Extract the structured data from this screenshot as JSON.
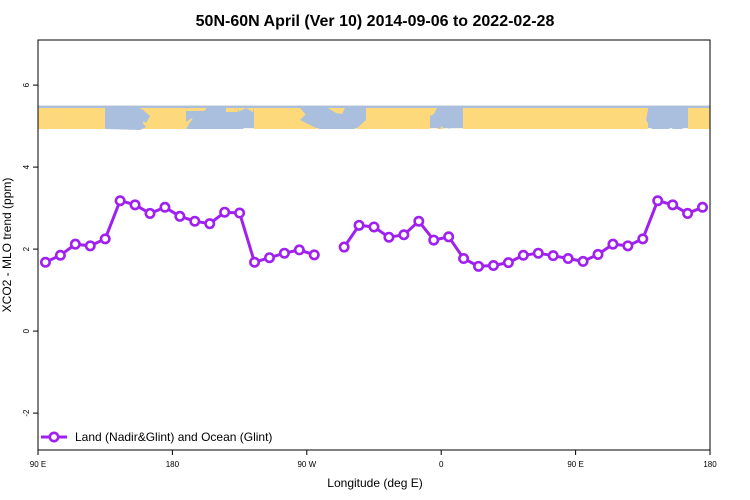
{
  "chart_data": {
    "type": "line",
    "title": "50N-60N April (Ver 10)   2014-09-06 to 2022-02-28",
    "xlabel": "Longitude (deg E)",
    "ylabel": "XCO2 - MLO trend (ppm)",
    "xlim": [
      90,
      540
    ],
    "ylim": [
      -2.9,
      7.1
    ],
    "x_ticks": [
      {
        "value": 90,
        "label": "90 E"
      },
      {
        "value": 180,
        "label": "180"
      },
      {
        "value": 270,
        "label": "90 W"
      },
      {
        "value": 360,
        "label": "0"
      },
      {
        "value": 450,
        "label": "90 E"
      },
      {
        "value": 540,
        "label": "180"
      }
    ],
    "y_ticks": [
      {
        "value": -2,
        "label": "-2"
      },
      {
        "value": 0,
        "label": "0"
      },
      {
        "value": 2,
        "label": "2"
      },
      {
        "value": 4,
        "label": "4"
      },
      {
        "value": 6,
        "label": "6"
      }
    ],
    "grid": false,
    "legend_position": "bottom-left",
    "colors": {
      "series": "#a020f0",
      "map_ocean": "#aabfdd",
      "map_land": "#fdd97c"
    },
    "map_strip": {
      "y_bottom": 4.95,
      "y_top": 5.5
    },
    "series": [
      {
        "name": "Land (Nadir&Glint) and Ocean (Glint)",
        "points": [
          [
            95,
            1.68
          ],
          [
            105,
            1.85
          ],
          [
            115,
            2.12
          ],
          [
            125,
            2.08
          ],
          [
            135,
            2.25
          ],
          [
            145,
            3.18
          ],
          [
            155,
            3.08
          ],
          [
            165,
            2.87
          ],
          [
            175,
            3.02
          ],
          [
            185,
            2.8
          ],
          [
            195,
            2.68
          ],
          [
            205,
            2.62
          ],
          [
            215,
            2.9
          ],
          [
            225,
            2.88
          ],
          [
            235,
            1.68
          ],
          [
            245,
            1.79
          ],
          [
            255,
            1.9
          ],
          [
            265,
            1.98
          ],
          [
            275,
            1.86
          ],
          [
            295,
            2.05
          ],
          [
            305,
            2.58
          ],
          [
            315,
            2.54
          ],
          [
            325,
            2.29
          ],
          [
            335,
            2.35
          ],
          [
            345,
            2.68
          ],
          [
            355,
            2.22
          ],
          [
            365,
            2.3
          ],
          [
            375,
            1.77
          ],
          [
            385,
            1.58
          ],
          [
            395,
            1.6
          ],
          [
            405,
            1.67
          ],
          [
            415,
            1.85
          ],
          [
            425,
            1.9
          ],
          [
            435,
            1.84
          ],
          [
            445,
            1.77
          ],
          [
            455,
            1.7
          ],
          [
            465,
            1.87
          ],
          [
            475,
            2.12
          ],
          [
            485,
            2.08
          ],
          [
            495,
            2.25
          ],
          [
            505,
            3.18
          ],
          [
            515,
            3.08
          ],
          [
            525,
            2.87
          ],
          [
            535,
            3.02
          ]
        ]
      }
    ]
  }
}
